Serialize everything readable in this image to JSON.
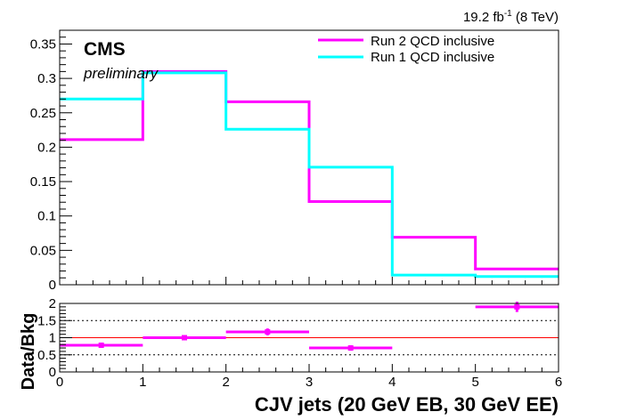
{
  "chart_data": [
    {
      "type": "line",
      "style": "histogram-step",
      "lumi_label": {
        "value": "19.2 fb",
        "exponent": "-1",
        "energy": " (8 TeV)"
      },
      "cms_label": "CMS",
      "status_label": "preliminary",
      "ylim": [
        0,
        0.37
      ],
      "yticks": [
        "0",
        "0.05",
        "0.1",
        "0.15",
        "0.2",
        "0.25",
        "0.3",
        "0.35"
      ],
      "bin_edges": [
        0,
        1,
        2,
        3,
        4,
        5,
        6
      ],
      "legend_position": "top-right",
      "series": [
        {
          "name": "Run 2 QCD inclusive",
          "color": "#ff00ff",
          "values": [
            0.211,
            0.31,
            0.266,
            0.121,
            0.069,
            0.023
          ]
        },
        {
          "name": "Run 1 QCD inclusive",
          "color": "#00ffff",
          "values": [
            0.27,
            0.308,
            0.226,
            0.171,
            0.014,
            0.012
          ]
        }
      ]
    },
    {
      "type": "scatter",
      "ylabel": "Data/Bkg",
      "xlabel": "CJV jets (20 GeV EB, 30 GeV EE)",
      "xlim": [
        0,
        6
      ],
      "ylim": [
        0,
        2
      ],
      "xticks": [
        "0",
        "1",
        "2",
        "3",
        "4",
        "5",
        "6"
      ],
      "yticks": [
        "0",
        "0.5",
        "1",
        "1.5",
        "2"
      ],
      "reference_line": 1,
      "dashed_lines": [
        0.5,
        1.5
      ],
      "color": "#ff00ff",
      "reference_color": "#ff0000",
      "points": [
        {
          "x": 0.5,
          "y": 0.78,
          "xerr": 0.5,
          "yerr": 0.04
        },
        {
          "x": 1.5,
          "y": 1.0,
          "xerr": 0.5,
          "yerr": 0.04
        },
        {
          "x": 2.5,
          "y": 1.17,
          "xerr": 0.5,
          "yerr": 0.1
        },
        {
          "x": 3.5,
          "y": 0.7,
          "xerr": 0.5,
          "yerr": 0.08
        },
        {
          "x": 5.5,
          "y": 1.9,
          "xerr": 0.5,
          "yerr": 0.15
        }
      ]
    }
  ]
}
